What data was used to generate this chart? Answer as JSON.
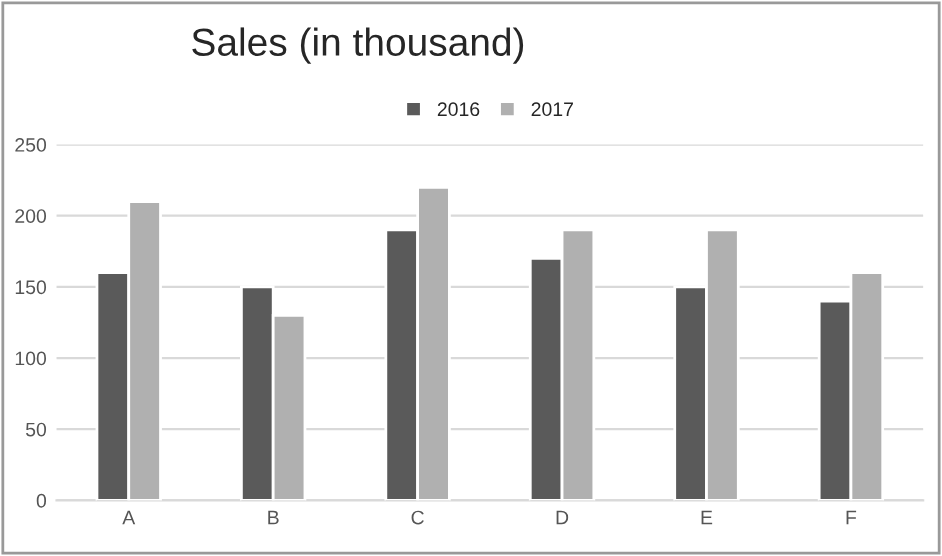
{
  "chart_data": {
    "type": "bar",
    "title": "Sales (in thousand)",
    "categories": [
      "A",
      "B",
      "C",
      "D",
      "E",
      "F"
    ],
    "series": [
      {
        "name": "2016",
        "color": "#5a5a5a",
        "values": [
          160,
          150,
          190,
          170,
          150,
          140
        ]
      },
      {
        "name": "2017",
        "color": "#b0b0b0",
        "values": [
          210,
          130,
          220,
          190,
          190,
          160
        ]
      }
    ],
    "ylim": [
      0,
      250
    ],
    "yticks": [
      0,
      50,
      100,
      150,
      200,
      250
    ],
    "grid": "y",
    "legend": "top"
  }
}
